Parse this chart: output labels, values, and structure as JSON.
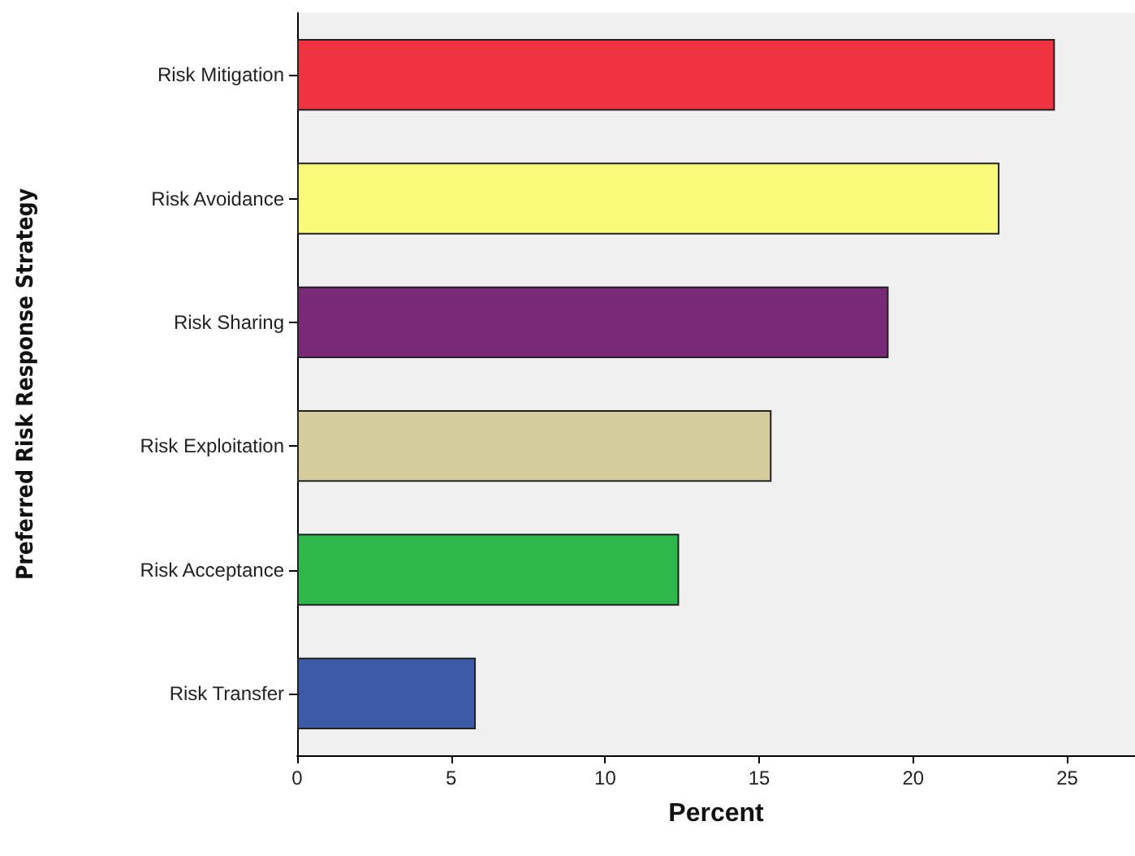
{
  "chart_data": {
    "type": "bar",
    "orientation": "horizontal",
    "xlabel": "Percent",
    "ylabel": "Preferred Risk Response Strategy",
    "categories": [
      "Risk Mitigation",
      "Risk Avoidance",
      "Risk Sharing",
      "Risk Exploitation",
      "Risk Acceptance",
      "Risk Transfer"
    ],
    "values": [
      24.6,
      22.8,
      19.2,
      15.4,
      12.4,
      5.8
    ],
    "colors": [
      "#ef3340",
      "#fafa7a",
      "#7a2878",
      "#d4cc9c",
      "#2eb84c",
      "#3c5aa8"
    ],
    "xlim": [
      0,
      27.2
    ],
    "xticks": [
      0,
      5,
      10,
      15,
      20,
      25
    ],
    "grid": false
  }
}
